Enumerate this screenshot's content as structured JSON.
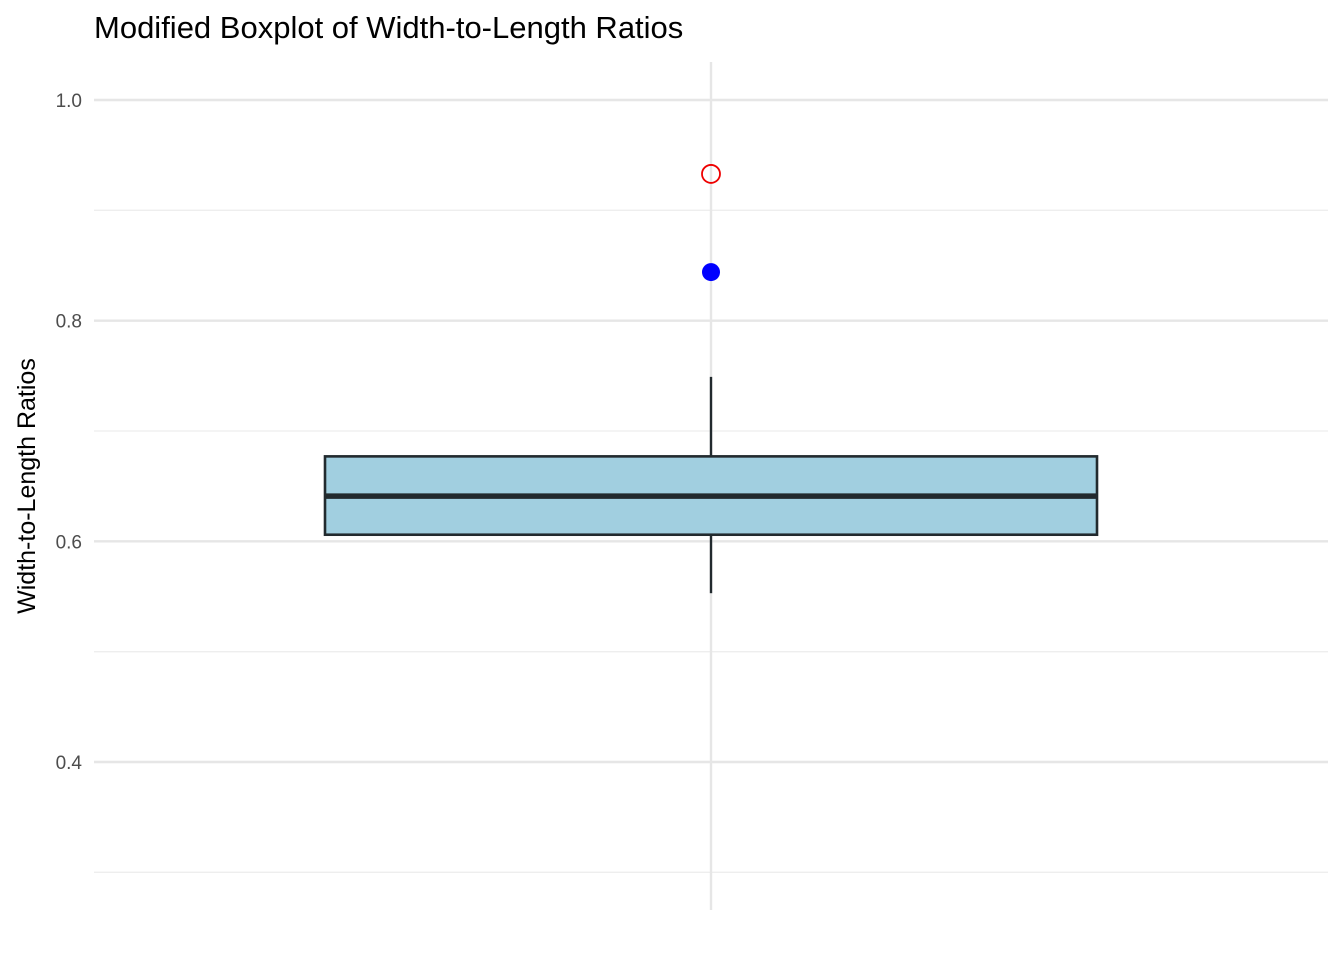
{
  "chart_data": {
    "type": "boxplot",
    "title": "Modified Boxplot of Width-to-Length Ratios",
    "xlabel": "",
    "ylabel": "Width-to-Length Ratios",
    "ylim": [
      0.27,
      1.035
    ],
    "yticks": [
      0.4,
      0.6,
      0.8,
      1.0
    ],
    "ytick_labels": [
      "0.4",
      "0.6",
      "0.8",
      "1.0"
    ],
    "yminor_ticks": [
      0.3,
      0.5,
      0.7,
      0.9
    ],
    "grid": true,
    "box": {
      "lower_whisker": 0.553,
      "q1": 0.606,
      "median": 0.641,
      "q3": 0.677,
      "upper_whisker": 0.749
    },
    "points": [
      {
        "value": 0.844,
        "style": "filled",
        "color": "#0000ff"
      },
      {
        "value": 0.933,
        "style": "open",
        "color": "#ee0000"
      }
    ],
    "colors": {
      "box_fill": "#a1cfe0",
      "box_stroke": "#222a2e",
      "grid_major": "#e6e6e6",
      "grid_minor": "#eeeeee"
    }
  }
}
